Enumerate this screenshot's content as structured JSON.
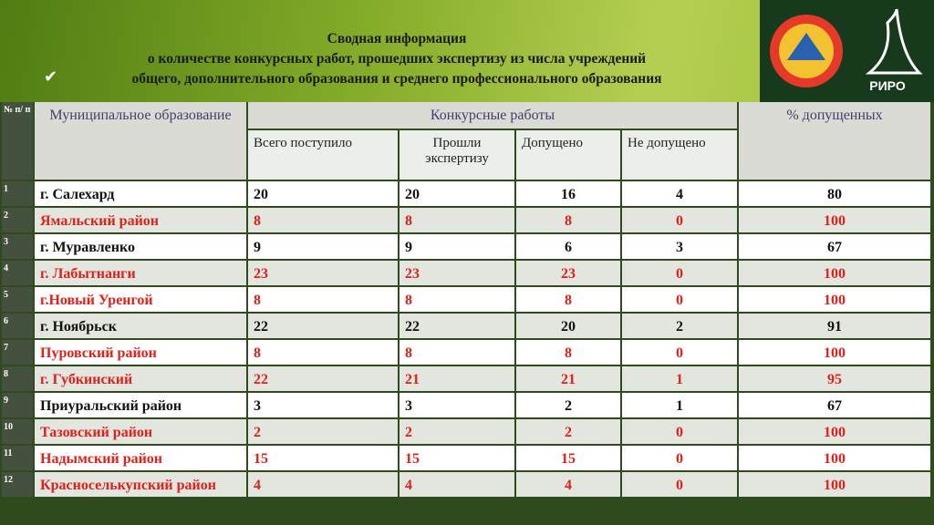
{
  "header": {
    "title_lines": [
      "Сводная информация",
      "о количестве конкурсных работ, прошедших экспертизу из числа учреждений",
      "общего,  дополнительного образования и среднего профессионального образования"
    ],
    "logo_text": "РИРО"
  },
  "table": {
    "head": {
      "no": "№ п/ п",
      "municipality": "Муниципальное образование",
      "works": "Конкурсные работы",
      "percent": "% допущенных",
      "sub": [
        "Всего поступило",
        "Прошли экспертизу",
        "Допущено",
        "Не допущено"
      ]
    },
    "rows": [
      {
        "no": "1",
        "name": "г. Салехард",
        "cells": [
          20,
          20,
          16,
          4,
          80
        ],
        "highlight": false
      },
      {
        "no": "2",
        "name": "Ямальский район",
        "cells": [
          8,
          8,
          8,
          0,
          100
        ],
        "highlight": true
      },
      {
        "no": "3",
        "name": "г. Муравленко",
        "cells": [
          9,
          9,
          6,
          3,
          67
        ],
        "highlight": false
      },
      {
        "no": "4",
        "name": "г. Лабытнанги",
        "cells": [
          23,
          23,
          23,
          0,
          100
        ],
        "highlight": true
      },
      {
        "no": "5",
        "name": "г.Новый Уренгой",
        "cells": [
          8,
          8,
          8,
          0,
          100
        ],
        "highlight": true
      },
      {
        "no": "6",
        "name": "г. Ноябрьск",
        "cells": [
          22,
          22,
          20,
          2,
          91
        ],
        "highlight": false
      },
      {
        "no": "7",
        "name": "Пуровский район",
        "cells": [
          8,
          8,
          8,
          0,
          100
        ],
        "highlight": true
      },
      {
        "no": "8",
        "name": "г. Губкинский",
        "cells": [
          22,
          21,
          21,
          1,
          95
        ],
        "highlight": true
      },
      {
        "no": "9",
        "name": "Приуральский район",
        "cells": [
          3,
          3,
          2,
          1,
          67
        ],
        "highlight": false
      },
      {
        "no": "10",
        "name": "Тазовский район",
        "cells": [
          2,
          2,
          2,
          0,
          100
        ],
        "highlight": true
      },
      {
        "no": "11",
        "name": "Надымский район",
        "cells": [
          15,
          15,
          15,
          0,
          100
        ],
        "highlight": true
      },
      {
        "no": "12",
        "name": "Красноселькупский район",
        "cells": [
          4,
          4,
          4,
          0,
          100
        ],
        "highlight": true
      }
    ]
  }
}
